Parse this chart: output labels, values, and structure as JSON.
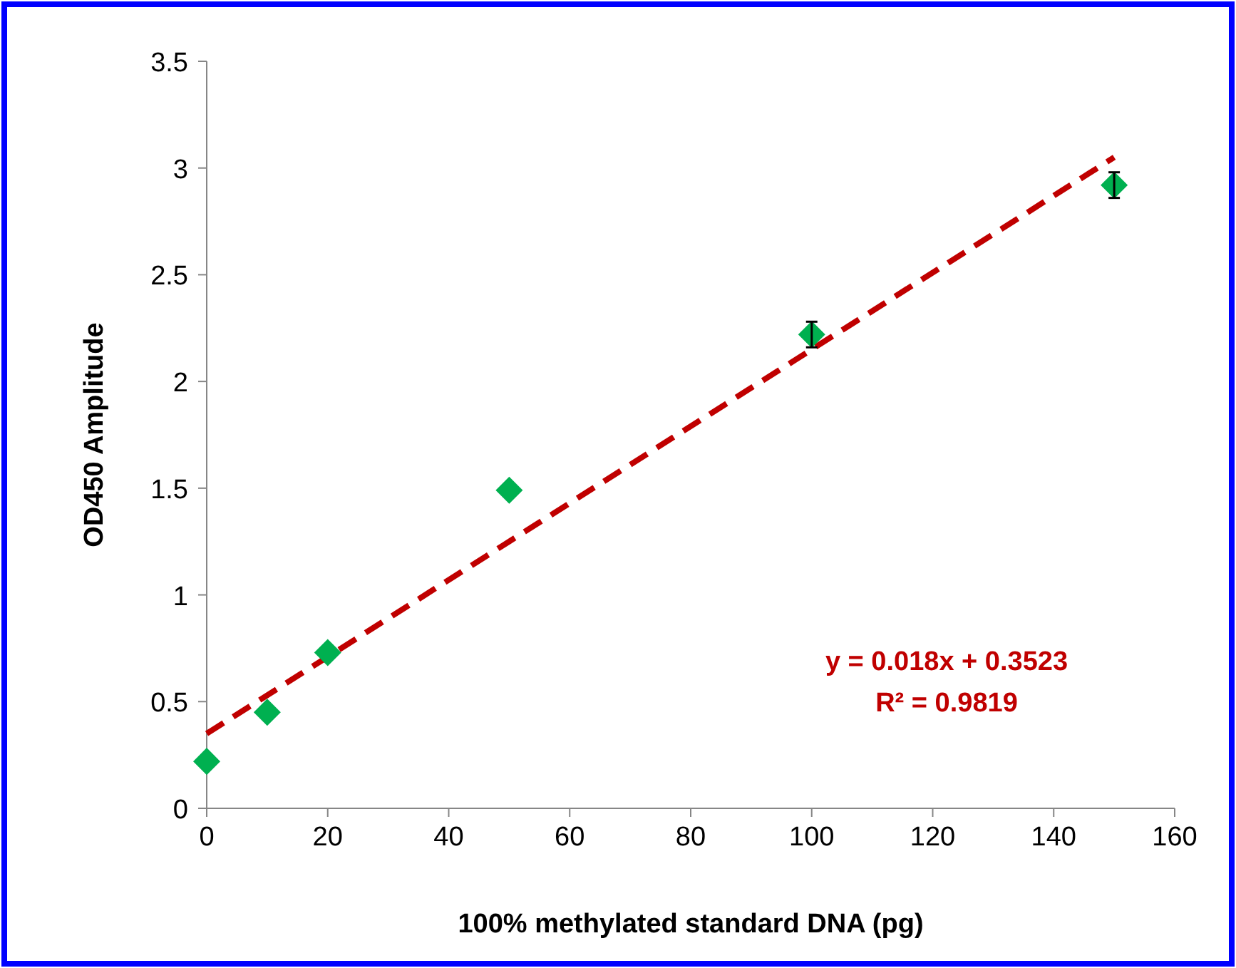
{
  "chart_data": {
    "type": "scatter",
    "xlabel": "100% methylated standard DNA (pg)",
    "ylabel": "OD450 Amplitude",
    "xlim": [
      0,
      160
    ],
    "xticks": [
      0,
      20,
      40,
      60,
      80,
      100,
      120,
      140,
      160
    ],
    "ylim": [
      0,
      3.5
    ],
    "yticks": [
      0,
      0.5,
      1,
      1.5,
      2,
      2.5,
      3,
      3.5
    ],
    "grid": false,
    "annotations": [
      "y = 0.018x + 0.3523",
      "R² = 0.9819"
    ],
    "series": [
      {
        "color": "#00b050",
        "marker": "diamond",
        "x": [
          0,
          10,
          20,
          50,
          100,
          150
        ],
        "values": [
          0.22,
          0.45,
          0.73,
          1.49,
          2.22,
          2.92
        ],
        "errors": [
          null,
          null,
          null,
          null,
          0.06,
          0.06
        ]
      },
      {
        "type": "line",
        "color": "#c00000",
        "line_style": "dashed",
        "marker": "none",
        "x": [
          0,
          150
        ],
        "values": [
          0.35,
          3.05
        ]
      }
    ]
  }
}
